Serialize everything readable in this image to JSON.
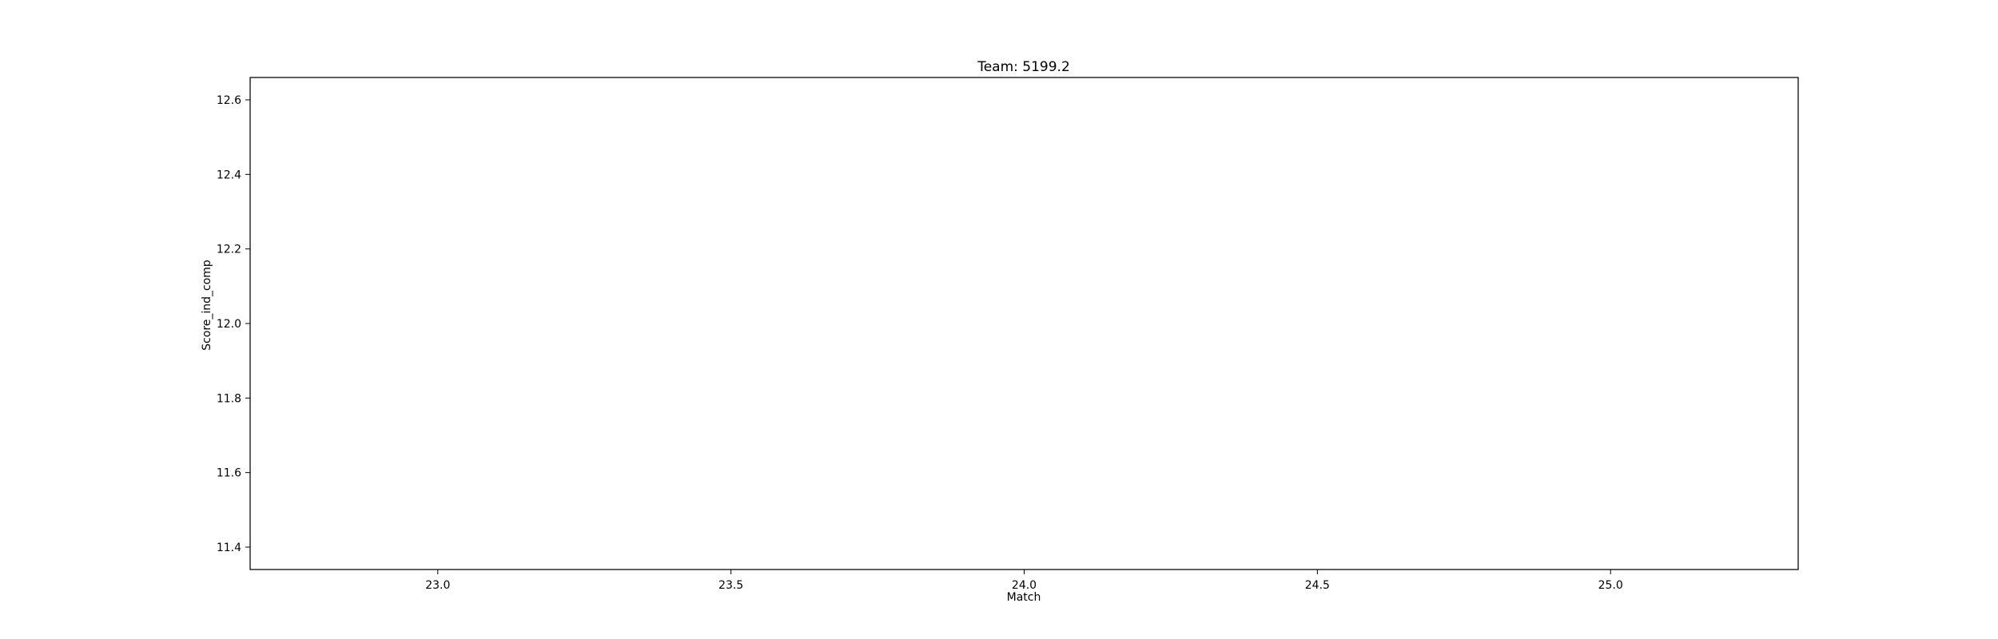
{
  "chart_data": {
    "type": "line",
    "title": "Team: 5199.2",
    "xlabel": "Match",
    "ylabel": "Score_ind_comp",
    "xlim": [
      22.68,
      25.32
    ],
    "ylim": [
      11.34,
      12.66
    ],
    "x_ticks": [
      23.0,
      23.5,
      24.0,
      24.5,
      25.0
    ],
    "x_tick_labels": [
      "23.0",
      "23.5",
      "24.0",
      "24.5",
      "25.0"
    ],
    "y_ticks": [
      11.4,
      11.6,
      11.8,
      12.0,
      12.2,
      12.4,
      12.6
    ],
    "y_tick_labels": [
      "11.4",
      "11.6",
      "11.8",
      "12.0",
      "12.2",
      "12.4",
      "12.6"
    ],
    "grid": false,
    "series": []
  }
}
